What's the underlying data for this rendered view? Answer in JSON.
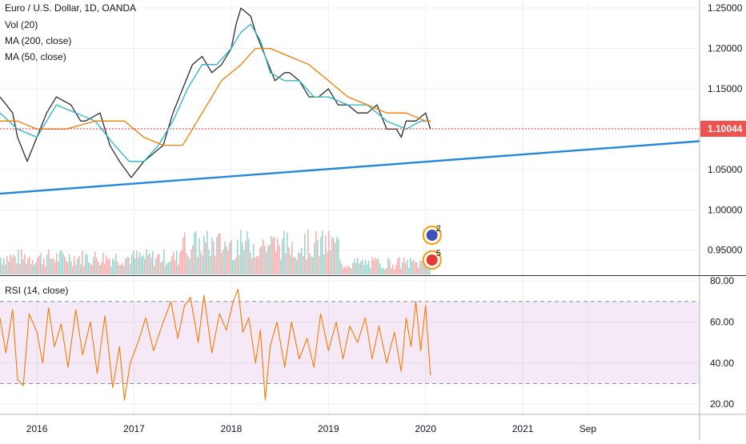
{
  "chart_data": [
    {
      "type": "line",
      "pane": "price",
      "title": "Euro / U.S. Dollar, 1D, OANDA",
      "indicators": [
        "Vol (20)",
        "MA (200, close)",
        "MA (50, close)"
      ],
      "y_ticks": [
        "1.25000",
        "1.20000",
        "1.15000",
        "1.10000",
        "1.05000",
        "1.00000",
        "0.95000"
      ],
      "y_tick_values": [
        1.25,
        1.2,
        1.15,
        1.1,
        1.05,
        1.0,
        0.95
      ],
      "ylim": [
        0.92,
        1.26
      ],
      "x_ticks": [
        "2016",
        "2017",
        "2018",
        "2019",
        "2020",
        "2021",
        "Sep"
      ],
      "x_tick_values": [
        2016.0,
        2017.0,
        2018.0,
        2019.0,
        2020.0,
        2021.0,
        2021.67
      ],
      "xlim": [
        2015.62,
        2022.82
      ],
      "last_price": 1.10044,
      "last_price_label": "1.10044",
      "series": [
        {
          "name": "Euro / U.S. Dollar",
          "x": [
            2015.62,
            2015.75,
            2015.8,
            2015.9,
            2016.0,
            2016.1,
            2016.2,
            2016.35,
            2016.45,
            2016.5,
            2016.65,
            2016.75,
            2016.85,
            2016.97,
            2017.1,
            2017.2,
            2017.3,
            2017.4,
            2017.5,
            2017.6,
            2017.7,
            2017.8,
            2017.9,
            2018.0,
            2018.05,
            2018.1,
            2018.2,
            2018.25,
            2018.35,
            2018.45,
            2018.55,
            2018.6,
            2018.7,
            2018.8,
            2018.9,
            2019.0,
            2019.1,
            2019.2,
            2019.3,
            2019.4,
            2019.5,
            2019.6,
            2019.7,
            2019.75,
            2019.8,
            2019.9,
            2020.0,
            2020.05
          ],
          "y": [
            1.14,
            1.12,
            1.09,
            1.06,
            1.09,
            1.12,
            1.14,
            1.13,
            1.11,
            1.11,
            1.12,
            1.08,
            1.06,
            1.04,
            1.06,
            1.07,
            1.08,
            1.12,
            1.15,
            1.18,
            1.19,
            1.17,
            1.18,
            1.2,
            1.23,
            1.25,
            1.24,
            1.22,
            1.19,
            1.16,
            1.17,
            1.17,
            1.16,
            1.14,
            1.14,
            1.15,
            1.13,
            1.13,
            1.12,
            1.12,
            1.13,
            1.1,
            1.1,
            1.09,
            1.11,
            1.11,
            1.12,
            1.1
          ]
        },
        {
          "name": "MA (50, close)",
          "x": [
            2015.62,
            2015.8,
            2016.0,
            2016.2,
            2016.4,
            2016.6,
            2016.8,
            2016.95,
            2017.1,
            2017.25,
            2017.4,
            2017.55,
            2017.7,
            2017.85,
            2018.0,
            2018.1,
            2018.2,
            2018.3,
            2018.4,
            2018.55,
            2018.7,
            2018.85,
            2019.0,
            2019.2,
            2019.4,
            2019.6,
            2019.8,
            2019.95,
            2020.05
          ],
          "y": [
            1.12,
            1.1,
            1.09,
            1.13,
            1.12,
            1.11,
            1.08,
            1.06,
            1.06,
            1.08,
            1.11,
            1.15,
            1.18,
            1.18,
            1.2,
            1.22,
            1.23,
            1.21,
            1.17,
            1.16,
            1.16,
            1.14,
            1.14,
            1.13,
            1.13,
            1.11,
            1.1,
            1.11,
            1.11
          ]
        },
        {
          "name": "MA (200, close)",
          "x": [
            2015.62,
            2015.8,
            2016.0,
            2016.3,
            2016.6,
            2016.9,
            2017.1,
            2017.3,
            2017.5,
            2017.6,
            2017.75,
            2017.9,
            2018.1,
            2018.25,
            2018.4,
            2018.6,
            2018.8,
            2019.0,
            2019.2,
            2019.4,
            2019.6,
            2019.8,
            2020.0,
            2020.05
          ],
          "y": [
            1.11,
            1.11,
            1.1,
            1.1,
            1.11,
            1.11,
            1.09,
            1.08,
            1.08,
            1.1,
            1.13,
            1.16,
            1.18,
            1.2,
            1.2,
            1.19,
            1.18,
            1.16,
            1.14,
            1.13,
            1.12,
            1.12,
            1.11,
            1.11
          ]
        },
        {
          "name": "Trend line",
          "x": [
            2015.62,
            2022.82
          ],
          "y": [
            1.02,
            1.085
          ]
        }
      ]
    },
    {
      "type": "bar",
      "pane": "volume",
      "name": "Vol (20)",
      "x_start": 2015.62,
      "x_end": 2020.05,
      "note_badges": [
        "2",
        "5"
      ]
    },
    {
      "type": "line",
      "pane": "rsi",
      "title": "RSI (14, close)",
      "y_ticks": [
        "80.00",
        "60.00",
        "40.00",
        "20.00"
      ],
      "y_tick_values": [
        80,
        60,
        40,
        20
      ],
      "ylim": [
        15,
        82
      ],
      "band": [
        30,
        70
      ],
      "series": [
        {
          "name": "RSI (14, close)",
          "x": [
            2015.62,
            2015.68,
            2015.75,
            2015.8,
            2015.86,
            2015.92,
            2016.0,
            2016.06,
            2016.12,
            2016.18,
            2016.25,
            2016.32,
            2016.4,
            2016.47,
            2016.55,
            2016.62,
            2016.7,
            2016.78,
            2016.85,
            2016.9,
            2016.96,
            2017.04,
            2017.12,
            2017.2,
            2017.3,
            2017.38,
            2017.45,
            2017.52,
            2017.58,
            2017.66,
            2017.72,
            2017.8,
            2017.88,
            2017.95,
            2018.02,
            2018.07,
            2018.12,
            2018.18,
            2018.25,
            2018.3,
            2018.35,
            2018.4,
            2018.47,
            2018.55,
            2018.62,
            2018.7,
            2018.78,
            2018.85,
            2018.92,
            2019.0,
            2019.08,
            2019.15,
            2019.22,
            2019.3,
            2019.38,
            2019.45,
            2019.52,
            2019.6,
            2019.68,
            2019.75,
            2019.8,
            2019.85,
            2019.9,
            2019.95,
            2020.0,
            2020.05
          ],
          "y": [
            62,
            45,
            66,
            32,
            29,
            64,
            55,
            40,
            67,
            48,
            59,
            38,
            66,
            44,
            60,
            35,
            63,
            28,
            48,
            22,
            40,
            50,
            62,
            46,
            60,
            70,
            52,
            68,
            72,
            50,
            73,
            45,
            64,
            56,
            70,
            76,
            55,
            62,
            40,
            56,
            22,
            48,
            60,
            38,
            60,
            42,
            52,
            38,
            64,
            46,
            60,
            42,
            58,
            50,
            62,
            42,
            58,
            40,
            55,
            36,
            62,
            48,
            70,
            46,
            68,
            34
          ]
        }
      ]
    }
  ]
}
